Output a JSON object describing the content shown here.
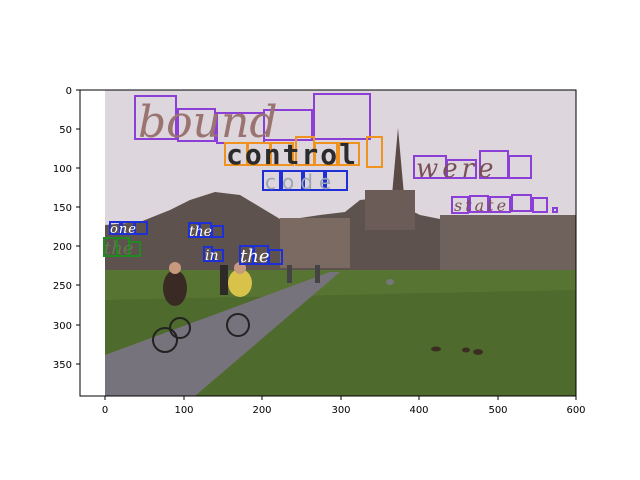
{
  "axes": {
    "x_ticks": [
      "0",
      "100",
      "200",
      "300",
      "400",
      "500",
      "600"
    ],
    "y_ticks": [
      "0",
      "50",
      "100",
      "150",
      "200",
      "250",
      "300",
      "350"
    ],
    "xlim": [
      -30,
      600
    ],
    "ylim": [
      395,
      0
    ]
  },
  "scene": {
    "description_hidden": true,
    "colors": {
      "sky": "#ddd6dc",
      "grass": "#4e6a2c",
      "path": "#77737c",
      "buildings": "#6b5c58",
      "trees": "#564c48"
    }
  },
  "word_boxes": {
    "purple": {
      "color": "#8b3fd6",
      "words": [
        "bound",
        "were",
        "state."
      ]
    },
    "orange": {
      "color": "#f0921e",
      "words": [
        "control"
      ]
    },
    "blue": {
      "color": "#1f2fd6",
      "words": [
        "code",
        "one",
        "the",
        "in",
        "the"
      ]
    },
    "green": {
      "color": "#1f8a1f",
      "words": [
        "the"
      ]
    }
  }
}
